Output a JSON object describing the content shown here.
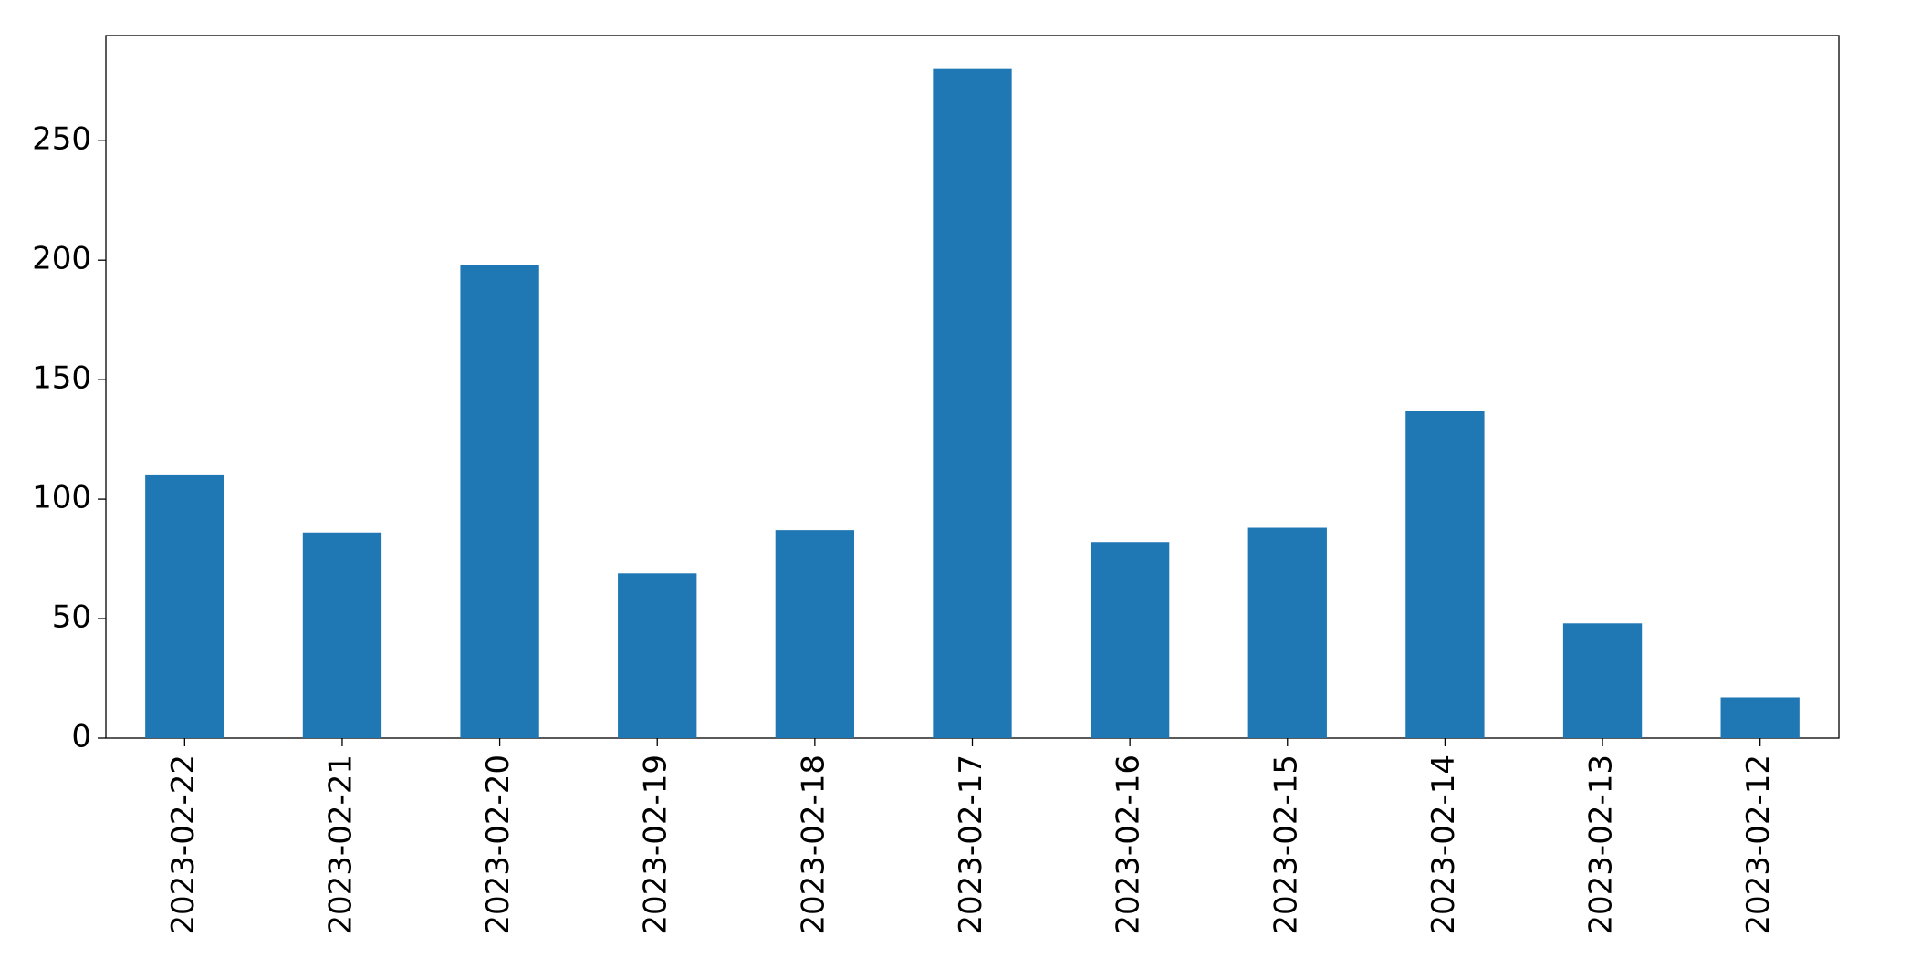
{
  "chart_data": {
    "type": "bar",
    "categories": [
      "2023-02-22",
      "2023-02-21",
      "2023-02-20",
      "2023-02-19",
      "2023-02-18",
      "2023-02-17",
      "2023-02-16",
      "2023-02-15",
      "2023-02-14",
      "2023-02-13",
      "2023-02-12"
    ],
    "values": [
      110,
      86,
      198,
      69,
      87,
      280,
      82,
      88,
      137,
      48,
      17
    ],
    "color": "#1f77b4",
    "ylim": [
      0,
      294
    ],
    "yticks": [
      0,
      50,
      100,
      150,
      200,
      250
    ],
    "grid": false
  }
}
